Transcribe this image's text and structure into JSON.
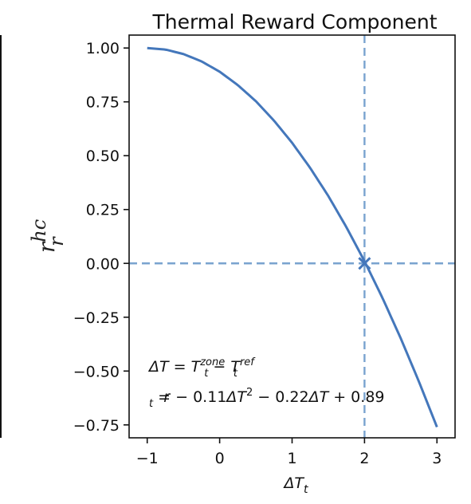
{
  "chart_data": {
    "type": "line",
    "title": "Thermal Reward Component",
    "xlabel": {
      "base": "ΔT",
      "sub": "t"
    },
    "ylabel": {
      "base": "r",
      "sup": "hc",
      "sub": "r"
    },
    "xlim": [
      -1.25,
      3.25
    ],
    "ylim": [
      -0.81,
      1.06
    ],
    "x_ticks": [
      -1,
      0,
      1,
      2,
      3
    ],
    "x_tick_labels": [
      "−1",
      "0",
      "1",
      "2",
      "3"
    ],
    "y_ticks": [
      1.0,
      0.75,
      0.5,
      0.25,
      0.0,
      -0.25,
      -0.5,
      -0.75
    ],
    "y_tick_labels": [
      "1.00",
      "0.75",
      "0.50",
      "0.25",
      "0.00",
      "−0.25",
      "−0.50",
      "−0.75"
    ],
    "grid": false,
    "series": [
      {
        "color": "#4477bb",
        "x": [
          -1.0,
          -0.75,
          -0.5,
          -0.25,
          0.0,
          0.25,
          0.5,
          0.75,
          1.0,
          1.25,
          1.5,
          1.75,
          2.0,
          2.25,
          2.5,
          2.75,
          3.0
        ],
        "y": [
          1.0,
          0.993,
          0.972,
          0.938,
          0.89,
          0.828,
          0.753,
          0.663,
          0.56,
          0.443,
          0.313,
          0.168,
          0.01,
          -0.162,
          -0.348,
          -0.548,
          -0.76
        ]
      }
    ],
    "reference_lines": {
      "vertical_x": 2.0,
      "horizontal_y": 0.0,
      "color": "#7aa3cf",
      "style": "dashed"
    },
    "marker": {
      "x": 2.0,
      "y": 0.0,
      "symbol": "x",
      "color": "#4477bb"
    },
    "annotations": [
      {
        "id": "deltaT",
        "parts": [
          {
            "t": "ΔT",
            "style": "it"
          },
          {
            "t": " = "
          },
          {
            "t": "T",
            "style": "it"
          },
          {
            "t": "zone",
            "style": "sup-it"
          },
          {
            "t": "t",
            "style": "sub-it"
          },
          {
            "t": " − "
          },
          {
            "t": "T",
            "style": "it"
          },
          {
            "t": "ref",
            "style": "sup-it"
          },
          {
            "t": "t",
            "style": "sub-it"
          }
        ]
      },
      {
        "id": "rt",
        "parts": [
          {
            "t": "r",
            "style": "it"
          },
          {
            "t": "t",
            "style": "sub-it"
          },
          {
            "t": " = − 0.11"
          },
          {
            "t": "ΔT",
            "style": "it"
          },
          {
            "t": "2",
            "style": "sup"
          },
          {
            "t": " − 0.22"
          },
          {
            "t": "ΔT",
            "style": "it"
          },
          {
            "t": " + 0.89"
          }
        ]
      }
    ]
  }
}
